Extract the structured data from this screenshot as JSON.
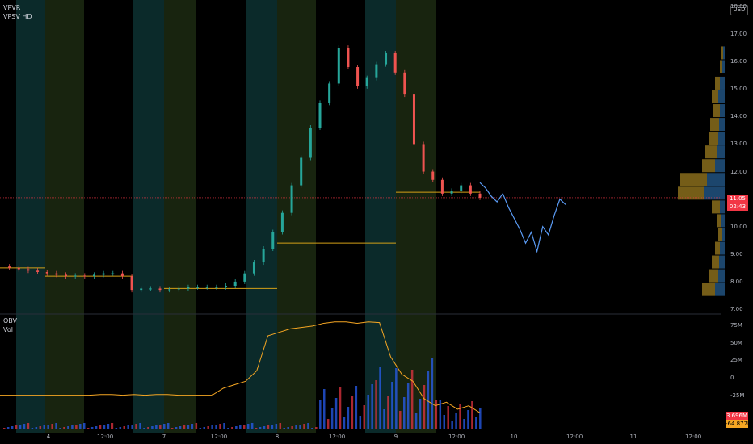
{
  "panels": {
    "price": {
      "indicators": [
        "VPVR",
        "VPSV HD"
      ],
      "currency": "USD",
      "axis_labels": [
        "18.00",
        "17.00",
        "16.00",
        "15.00",
        "14.00",
        "13.00",
        "12.00",
        "11.00",
        "10.00",
        "9.00",
        "8.00",
        "7.00"
      ],
      "last_price": "11.05",
      "countdown": "02:43",
      "colors": {
        "line": "#2962ff",
        "last_price": "#f23645",
        "projection": "#5b9cf6",
        "poc": "#d4a017"
      }
    },
    "lower": {
      "indicators": [
        "OBV",
        "Vol"
      ],
      "axis_labels": [
        "75M",
        "50M",
        "25M",
        "0",
        "-25M"
      ],
      "tag_top": "3.696M",
      "tag_bottom": "-64.877M"
    }
  },
  "time_axis": {
    "labels": [
      "4",
      "12:00",
      "7",
      "12:00",
      "8",
      "12:00",
      "9",
      "12:00",
      "10",
      "12:00",
      "11",
      "12:00"
    ]
  },
  "chart_data": {
    "type": "line",
    "title": "",
    "x_labels": [
      "4",
      "12:00",
      "7",
      "12:00",
      "8",
      "12:00",
      "9",
      "12:00",
      "10",
      "12:00",
      "11",
      "12:00"
    ],
    "ylim": [
      7.0,
      18.0
    ],
    "series": [
      {
        "values": [
          8.55,
          8.5,
          8.45,
          8.4,
          8.35,
          8.3,
          8.25,
          8.2,
          8.22,
          8.2,
          8.25,
          8.3,
          8.3,
          8.2,
          7.7,
          7.75,
          7.75,
          7.7,
          7.72,
          7.75,
          7.8,
          7.8,
          7.8,
          7.8,
          7.85,
          8.0,
          8.3,
          8.7,
          9.2,
          9.8,
          10.5,
          11.5,
          12.5,
          13.6,
          14.5,
          15.2,
          16.5,
          15.8,
          15.1,
          15.4,
          15.9,
          16.3,
          15.6,
          14.8,
          13.0,
          12.0,
          11.7,
          11.2,
          11.3,
          11.5,
          11.2,
          11.05
        ]
      },
      {
        "values": [
          11.6,
          11.4,
          11.1,
          10.9,
          11.2,
          10.7,
          10.3,
          9.9,
          9.4,
          9.8,
          9.1,
          10.0,
          9.7,
          10.4,
          11.0,
          10.8
        ]
      }
    ],
    "obv": [
      -25,
      -25,
      -25,
      -25,
      -25,
      -25,
      -25,
      -25,
      -25,
      -24,
      -24,
      -25,
      -24,
      -25,
      -24,
      -24,
      -25,
      -25,
      -25,
      -25,
      -15,
      -10,
      -5,
      10,
      60,
      65,
      70,
      72,
      74,
      78,
      80,
      80,
      78,
      80,
      79,
      30,
      5,
      -5,
      -30,
      -40,
      -35,
      -45,
      -40,
      -50
    ]
  }
}
